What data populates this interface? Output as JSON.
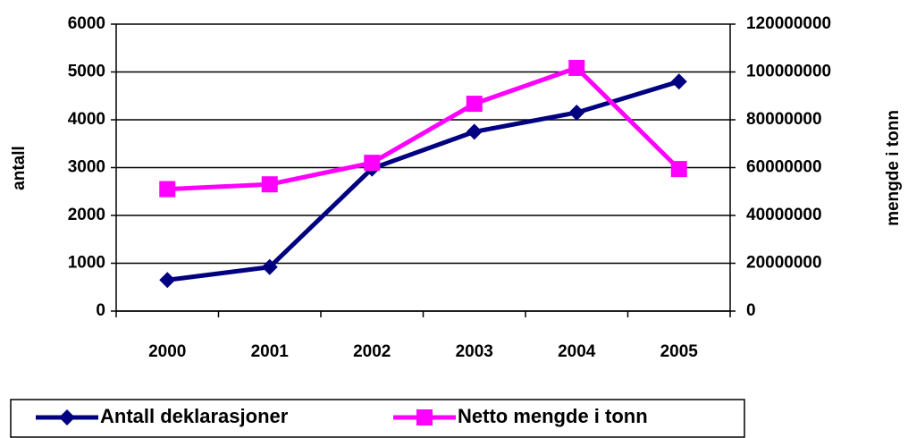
{
  "chart_data": {
    "type": "line",
    "categories": [
      "2000",
      "2001",
      "2002",
      "2003",
      "2004",
      "2005"
    ],
    "ylabel": "antall",
    "y2label": "mengde i tonn",
    "ylim": [
      0,
      6000
    ],
    "yticks": [
      0,
      1000,
      2000,
      3000,
      4000,
      5000,
      6000
    ],
    "y2lim": [
      0,
      120000000
    ],
    "y2ticks": [
      0,
      20000000,
      40000000,
      60000000,
      80000000,
      100000000,
      120000000
    ],
    "grid": true,
    "legend": "bottom",
    "series": [
      {
        "name": "Antall deklarasjoner",
        "color": "#000080",
        "marker": "diamond",
        "values": [
          650,
          920,
          2980,
          3750,
          4150,
          4800
        ]
      },
      {
        "name": "Netto mengde i tonn",
        "color": "#ff00ff",
        "marker": "square",
        "axis": "y2",
        "values": [
          51000000,
          53000000,
          62000000,
          86700000,
          101700000,
          59400000
        ]
      }
    ]
  }
}
